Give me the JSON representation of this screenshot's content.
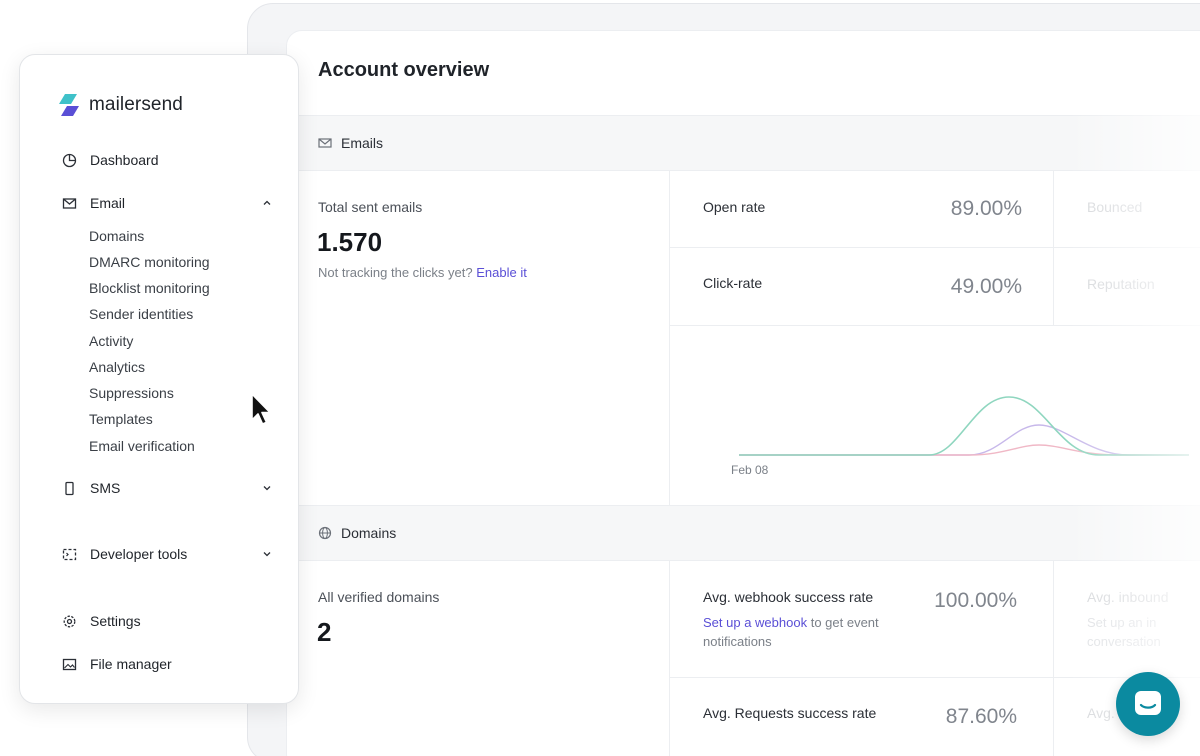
{
  "page_title": "Account overview",
  "emails_section": {
    "heading": "Emails",
    "total_label": "Total sent emails",
    "total_value": "1.570",
    "tracking_note": "Not tracking the clicks yet?",
    "tracking_link": "Enable it",
    "open_rate_label": "Open rate",
    "open_rate_value": "89.00%",
    "click_rate_label": "Click-rate",
    "click_rate_value": "49.00%",
    "bounced_label": "Bounced",
    "reputation_label": "Reputation",
    "chart_date": "Feb 08"
  },
  "domains_section": {
    "heading": "Domains",
    "verified_label": "All verified domains",
    "verified_value": "2",
    "webhook_label": "Avg. webhook success rate",
    "webhook_value": "100.00%",
    "webhook_link": "Set up a webhook",
    "webhook_note": "to get event notifications",
    "requests_label": "Avg. Requests success rate",
    "requests_value": "87.60%",
    "inbound_label": "Avg. inbound",
    "inbound_note_1": "Set up an in",
    "inbound_note_2": "conversation",
    "avg_label": "Avg."
  },
  "sidebar": {
    "logo_text": "mailersend",
    "dashboard": "Dashboard",
    "email": "Email",
    "email_items": [
      "Domains",
      "DMARC monitoring",
      "Blocklist monitoring",
      "Sender identities",
      "Activity",
      "Analytics",
      "Suppressions",
      "Templates",
      "Email verification"
    ],
    "sms": "SMS",
    "developer_tools": "Developer tools",
    "settings": "Settings",
    "file_manager": "File manager"
  },
  "colors": {
    "accent_link": "#5a4fd6",
    "chat_button": "#0b8aa0",
    "series_green": "#8fd6bf",
    "series_purple": "#c7b8ea",
    "series_pink": "#f0b8c6"
  }
}
